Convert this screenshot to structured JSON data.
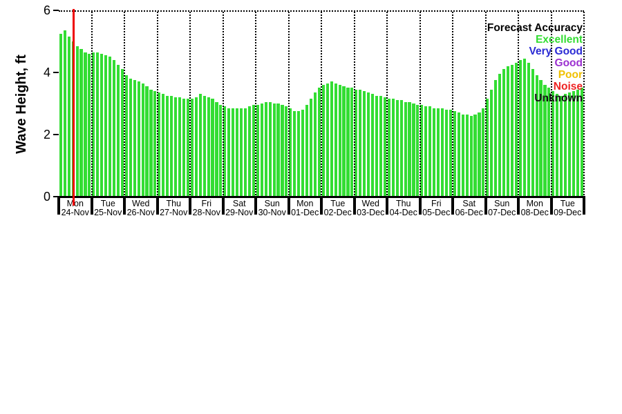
{
  "chart_data": {
    "type": "bar",
    "title": "",
    "ylabel": "Wave Height, ft",
    "xlabel": "",
    "ylim": [
      0,
      6
    ],
    "yticks": [
      0,
      2,
      4,
      6
    ],
    "bar_color": "#33dd33",
    "grid": "dotted-vertical-day-boundaries",
    "now_line": {
      "color": "#ee0000",
      "position_days": 0.45
    },
    "points_per_day": 8,
    "x_days": [
      {
        "day": "Mon",
        "date": "24-Nov"
      },
      {
        "day": "Tue",
        "date": "25-Nov"
      },
      {
        "day": "Wed",
        "date": "26-Nov"
      },
      {
        "day": "Thu",
        "date": "27-Nov"
      },
      {
        "day": "Fri",
        "date": "28-Nov"
      },
      {
        "day": "Sat",
        "date": "29-Nov"
      },
      {
        "day": "Sun",
        "date": "30-Nov"
      },
      {
        "day": "Mon",
        "date": "01-Dec"
      },
      {
        "day": "Tue",
        "date": "02-Dec"
      },
      {
        "day": "Wed",
        "date": "03-Dec"
      },
      {
        "day": "Thu",
        "date": "04-Dec"
      },
      {
        "day": "Fri",
        "date": "05-Dec"
      },
      {
        "day": "Sat",
        "date": "06-Dec"
      },
      {
        "day": "Sun",
        "date": "07-Dec"
      },
      {
        "day": "Mon",
        "date": "08-Dec"
      },
      {
        "day": "Tue",
        "date": "09-Dec"
      }
    ],
    "values": [
      5.3,
      5.4,
      5.2,
      5.05,
      4.9,
      4.8,
      4.7,
      4.65,
      4.7,
      4.7,
      4.65,
      4.6,
      4.55,
      4.45,
      4.3,
      4.15,
      3.95,
      3.85,
      3.8,
      3.75,
      3.7,
      3.6,
      3.5,
      3.45,
      3.4,
      3.35,
      3.3,
      3.3,
      3.25,
      3.25,
      3.2,
      3.2,
      3.2,
      3.25,
      3.35,
      3.3,
      3.25,
      3.2,
      3.1,
      3.0,
      2.95,
      2.9,
      2.9,
      2.9,
      2.9,
      2.9,
      2.95,
      3.0,
      3.0,
      3.05,
      3.1,
      3.1,
      3.05,
      3.05,
      3.0,
      2.95,
      2.9,
      2.8,
      2.8,
      2.85,
      3.0,
      3.2,
      3.4,
      3.55,
      3.65,
      3.7,
      3.75,
      3.7,
      3.65,
      3.6,
      3.55,
      3.55,
      3.5,
      3.5,
      3.45,
      3.4,
      3.35,
      3.3,
      3.3,
      3.25,
      3.2,
      3.2,
      3.15,
      3.15,
      3.1,
      3.1,
      3.05,
      3.0,
      3.0,
      2.95,
      2.95,
      2.9,
      2.9,
      2.9,
      2.85,
      2.85,
      2.8,
      2.75,
      2.7,
      2.7,
      2.65,
      2.7,
      2.75,
      2.9,
      3.2,
      3.5,
      3.8,
      4.0,
      4.15,
      4.25,
      4.3,
      4.35,
      4.45,
      4.5,
      4.35,
      4.15,
      3.95,
      3.8,
      3.65,
      3.55,
      3.45,
      3.35,
      3.3,
      3.35,
      3.4,
      3.45,
      3.5,
      3.55
    ],
    "legend": {
      "position": "top-right",
      "entries": [
        {
          "label": "Forecast Accuracy",
          "color": "#000000"
        },
        {
          "label": "Excellent",
          "color": "#33dd33"
        },
        {
          "label": "Very Good",
          "color": "#2a2ad4"
        },
        {
          "label": "Good",
          "color": "#9b30d0"
        },
        {
          "label": "Poor",
          "color": "#f0c000"
        },
        {
          "label": "Noise",
          "color": "#ee2222"
        },
        {
          "label": "Unknown",
          "color": "#111111"
        }
      ]
    }
  }
}
